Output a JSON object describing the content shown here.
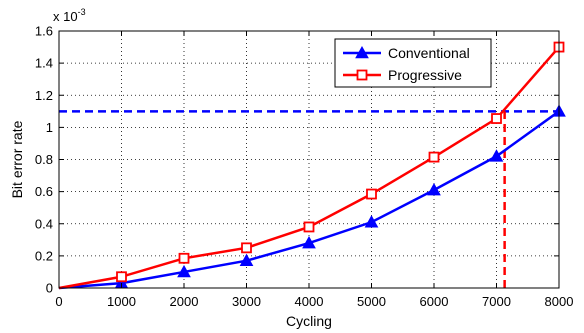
{
  "chart_data": {
    "type": "line",
    "xlabel": "Cycling",
    "ylabel": "Bit error rate",
    "y_multiplier_base": "x 10",
    "y_multiplier_exp": "-3",
    "x_ticks": [
      "0",
      "1000",
      "2000",
      "3000",
      "4000",
      "5000",
      "6000",
      "7000",
      "8000"
    ],
    "y_ticks": [
      "0",
      "0.2",
      "0.4",
      "0.6",
      "0.8",
      "1",
      "1.2",
      "1.4",
      "1.6"
    ],
    "xlim": [
      0,
      8000
    ],
    "ylim": [
      0,
      1.6
    ],
    "grid": true,
    "legend_position": "top-right",
    "x": [
      0,
      1000,
      2000,
      3000,
      4000,
      5000,
      6000,
      7000,
      8000
    ],
    "series": [
      {
        "name": "Conventional",
        "color": "#0000ff",
        "marker": "triangle",
        "values": [
          0,
          0.03,
          0.1,
          0.17,
          0.28,
          0.41,
          0.61,
          0.82,
          1.1
        ]
      },
      {
        "name": "Progressive",
        "color": "#ff0000",
        "marker": "square",
        "values": [
          0,
          0.07,
          0.185,
          0.25,
          0.38,
          0.585,
          0.815,
          1.055,
          1.5
        ]
      }
    ],
    "reference_lines": [
      {
        "orientation": "horizontal",
        "value": 1.1,
        "from_x": 0,
        "to_x": 8000,
        "color": "#0000ff",
        "style": "dashed"
      },
      {
        "orientation": "vertical",
        "value": 7130,
        "from_y": 0,
        "to_y": 1.1,
        "color": "#ff0000",
        "style": "dashed"
      }
    ]
  }
}
